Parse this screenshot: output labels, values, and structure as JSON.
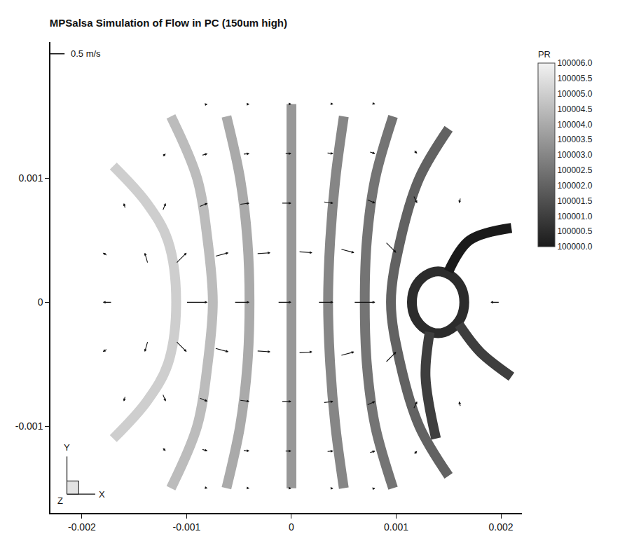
{
  "chart_data": {
    "type": "vector_field",
    "title": "MPSalsa Simulation of Flow in PC (150um high)",
    "xlim": [
      -0.0023,
      0.0022
    ],
    "xticks": [
      -0.002,
      -0.001,
      0,
      0.001,
      0.002
    ],
    "ylim": [
      -0.0017,
      0.0021
    ],
    "yticks": [
      -0.001,
      0,
      0.001
    ],
    "grid": false,
    "axes_triad": [
      "X",
      "Y",
      "Z"
    ],
    "reference_vector": {
      "value": 0.5,
      "label": "0.5 m/s"
    },
    "colorbar": {
      "title": "PR",
      "range": [
        100000,
        100006
      ],
      "ticks": [
        {
          "value": 100006,
          "label": "100006.0"
        },
        100005.5,
        {
          "value": 100005,
          "label": "100005.0"
        },
        100004.5,
        {
          "value": 100004,
          "label": "100004.0"
        },
        100003.5,
        {
          "value": 100003,
          "label": "100003.0"
        },
        100002.5,
        {
          "value": 100002,
          "label": "100002.0"
        },
        100001.5,
        {
          "value": 100001,
          "label": "100001.0"
        },
        100000.5,
        {
          "value": 100000,
          "label": "100000.0"
        }
      ]
    },
    "isobands": [
      {
        "pressure": 100005.0,
        "x": [
          -0.0017,
          -0.00138,
          -0.00118,
          -0.0011,
          -0.00118,
          -0.00138,
          -0.0017
        ],
        "y": [
          0.0011,
          0.0008,
          0.0005,
          0,
          -0.0005,
          -0.0008,
          -0.0011
        ]
      },
      {
        "pressure": 100004.5,
        "x": [
          -0.00115,
          -0.0009,
          -0.0008,
          -0.00075,
          -0.0008,
          -0.0009,
          -0.00115
        ],
        "y": [
          0.0015,
          0.001,
          0.0005,
          0,
          -0.0005,
          -0.001,
          -0.0015
        ]
      },
      {
        "pressure": 100004.0,
        "x": [
          -0.00062,
          -0.00049,
          -0.00042,
          -0.0004,
          -0.00042,
          -0.00049,
          -0.00062
        ],
        "y": [
          0.0015,
          0.001,
          0.0005,
          0,
          -0.0005,
          -0.001,
          -0.0015
        ]
      },
      {
        "pressure": 100003.5,
        "x": [
          0,
          0,
          0,
          0,
          0,
          0,
          0
        ],
        "y": [
          0.0016,
          0.001,
          0.0005,
          0,
          -0.0005,
          -0.001,
          -0.0015
        ]
      },
      {
        "pressure": 100003.0,
        "x": [
          0.0005,
          0.00042,
          0.00037,
          0.00035,
          0.00037,
          0.00042,
          0.0005
        ],
        "y": [
          0.0015,
          0.001,
          0.0005,
          0,
          -0.0005,
          -0.001,
          -0.0015
        ]
      },
      {
        "pressure": 100002.5,
        "x": [
          0.00097,
          0.0008,
          0.00072,
          0.0007,
          0.00072,
          0.0008,
          0.00097
        ],
        "y": [
          0.0015,
          0.001,
          0.0005,
          0,
          -0.0005,
          -0.001,
          -0.0015
        ]
      },
      {
        "pressure": 100002.0,
        "x": [
          0.0015,
          0.00122,
          0.00104,
          0.00095,
          0.00104,
          0.00122,
          0.0015
        ],
        "y": [
          0.0014,
          0.001,
          0.0005,
          0,
          -0.0005,
          -0.001,
          -0.0014
        ]
      },
      {
        "pressure": 100000.5,
        "x": [
          0.00165,
          0.001617,
          0.00152,
          0.0014,
          0.00128,
          0.001183,
          0.00115,
          0.001183,
          0.00128,
          0.0014,
          0.00152,
          0.001617,
          0.00165
        ],
        "y": [
          0,
          0.000125,
          0.000217,
          0.00025,
          0.000217,
          0.000125,
          0,
          -0.000125,
          -0.000217,
          -0.00025,
          -0.000217,
          -0.000125,
          0
        ]
      },
      {
        "pressure": 100000.0,
        "x": [
          0.0015,
          0.0017,
          0.0021
        ],
        "y": [
          0.00025,
          0.0005,
          0.0006
        ]
      },
      {
        "pressure": 100001.0,
        "x": [
          0.00132,
          0.00128,
          0.00138
        ],
        "y": [
          -0.00024,
          -0.0006,
          -0.0011
        ]
      },
      {
        "pressure": 100001.0,
        "x": [
          0.0016,
          0.0018,
          0.0021
        ],
        "y": [
          -0.00018,
          -0.0004,
          -0.0006
        ]
      }
    ],
    "vectors": [
      {
        "x": -0.0008,
        "y": 0.0016,
        "u": 0.1,
        "v": 0.02
      },
      {
        "x": -0.0004,
        "y": 0.0016,
        "u": 0.12,
        "v": 0.01
      },
      {
        "x": 0,
        "y": 0.0016,
        "u": 0.12,
        "v": 0
      },
      {
        "x": 0.0004,
        "y": 0.0016,
        "u": 0.12,
        "v": -0.01
      },
      {
        "x": 0.0008,
        "y": 0.0016,
        "u": 0.1,
        "v": -0.02
      },
      {
        "x": -0.0012,
        "y": 0.0012,
        "u": 0.12,
        "v": 0.12
      },
      {
        "x": -0.0008,
        "y": 0.0012,
        "u": 0.2,
        "v": 0.06
      },
      {
        "x": -0.0004,
        "y": 0.0012,
        "u": 0.22,
        "v": 0.02
      },
      {
        "x": 0,
        "y": 0.0012,
        "u": 0.22,
        "v": 0
      },
      {
        "x": 0.0004,
        "y": 0.0012,
        "u": 0.22,
        "v": -0.02
      },
      {
        "x": 0.0008,
        "y": 0.0012,
        "u": 0.2,
        "v": -0.06
      },
      {
        "x": 0.0012,
        "y": 0.0012,
        "u": 0.12,
        "v": -0.12
      },
      {
        "x": -0.0016,
        "y": 0.0008,
        "u": -0.05,
        "v": 0.18
      },
      {
        "x": -0.0012,
        "y": 0.0008,
        "u": 0.1,
        "v": 0.25
      },
      {
        "x": -0.0008,
        "y": 0.0008,
        "u": 0.28,
        "v": 0.12
      },
      {
        "x": -0.0004,
        "y": 0.0008,
        "u": 0.33,
        "v": 0.04
      },
      {
        "x": 0,
        "y": 0.0008,
        "u": 0.33,
        "v": 0
      },
      {
        "x": 0.0004,
        "y": 0.0008,
        "u": 0.33,
        "v": -0.04
      },
      {
        "x": 0.0008,
        "y": 0.0008,
        "u": 0.28,
        "v": -0.12
      },
      {
        "x": 0.0012,
        "y": 0.0008,
        "u": 0.12,
        "v": -0.25
      },
      {
        "x": 0.0016,
        "y": 0.0008,
        "u": -0.05,
        "v": -0.18
      },
      {
        "x": -0.0018,
        "y": 0.0004,
        "u": -0.15,
        "v": 0.1
      },
      {
        "x": -0.0014,
        "y": 0.0004,
        "u": -0.1,
        "v": 0.35
      },
      {
        "x": -0.001,
        "y": 0.0004,
        "u": 0.35,
        "v": 0.35
      },
      {
        "x": -0.0006,
        "y": 0.0004,
        "u": 0.45,
        "v": 0.12
      },
      {
        "x": -0.0002,
        "y": 0.0004,
        "u": 0.45,
        "v": 0.03
      },
      {
        "x": 0.0002,
        "y": 0.0004,
        "u": 0.45,
        "v": -0.03
      },
      {
        "x": 0.0006,
        "y": 0.0004,
        "u": 0.45,
        "v": -0.12
      },
      {
        "x": 0.001,
        "y": 0.0004,
        "u": 0.35,
        "v": -0.35
      },
      {
        "x": -0.0018,
        "y": 0,
        "u": -0.3,
        "v": 0
      },
      {
        "x": -0.0008,
        "y": 0,
        "u": 0.7,
        "v": 0
      },
      {
        "x": -0.0004,
        "y": 0,
        "u": 0.5,
        "v": 0
      },
      {
        "x": 0,
        "y": 0,
        "u": 0.45,
        "v": 0
      },
      {
        "x": 0.0004,
        "y": 0,
        "u": 0.5,
        "v": 0
      },
      {
        "x": 0.0008,
        "y": 0,
        "u": 0.7,
        "v": 0
      },
      {
        "x": 0.0019,
        "y": 0,
        "u": -0.3,
        "v": 0
      },
      {
        "x": -0.0018,
        "y": -0.0004,
        "u": -0.15,
        "v": -0.1
      },
      {
        "x": -0.0014,
        "y": -0.0004,
        "u": -0.1,
        "v": -0.35
      },
      {
        "x": -0.001,
        "y": -0.0004,
        "u": 0.35,
        "v": -0.35
      },
      {
        "x": -0.0006,
        "y": -0.0004,
        "u": 0.45,
        "v": -0.12
      },
      {
        "x": -0.0002,
        "y": -0.0004,
        "u": 0.45,
        "v": -0.03
      },
      {
        "x": 0.0002,
        "y": -0.0004,
        "u": 0.45,
        "v": 0.03
      },
      {
        "x": 0.0006,
        "y": -0.0004,
        "u": 0.45,
        "v": 0.12
      },
      {
        "x": 0.001,
        "y": -0.0004,
        "u": 0.35,
        "v": 0.35
      },
      {
        "x": -0.0016,
        "y": -0.0008,
        "u": -0.05,
        "v": -0.18
      },
      {
        "x": -0.0012,
        "y": -0.0008,
        "u": 0.1,
        "v": -0.25
      },
      {
        "x": -0.0008,
        "y": -0.0008,
        "u": 0.28,
        "v": -0.12
      },
      {
        "x": -0.0004,
        "y": -0.0008,
        "u": 0.33,
        "v": -0.04
      },
      {
        "x": 0,
        "y": -0.0008,
        "u": 0.33,
        "v": 0
      },
      {
        "x": 0.0004,
        "y": -0.0008,
        "u": 0.33,
        "v": 0.04
      },
      {
        "x": 0.0008,
        "y": -0.0008,
        "u": 0.28,
        "v": 0.12
      },
      {
        "x": 0.0012,
        "y": -0.0008,
        "u": 0.12,
        "v": 0.25
      },
      {
        "x": 0.0016,
        "y": -0.0008,
        "u": -0.05,
        "v": 0.18
      },
      {
        "x": -0.0012,
        "y": -0.0012,
        "u": 0.12,
        "v": -0.12
      },
      {
        "x": -0.0008,
        "y": -0.0012,
        "u": 0.2,
        "v": -0.06
      },
      {
        "x": -0.0004,
        "y": -0.0012,
        "u": 0.22,
        "v": -0.02
      },
      {
        "x": 0,
        "y": -0.0012,
        "u": 0.22,
        "v": 0
      },
      {
        "x": 0.0004,
        "y": -0.0012,
        "u": 0.22,
        "v": 0.02
      },
      {
        "x": 0.0008,
        "y": -0.0012,
        "u": 0.2,
        "v": 0.06
      },
      {
        "x": 0.0012,
        "y": -0.0012,
        "u": 0.12,
        "v": 0.12
      },
      {
        "x": -0.0008,
        "y": -0.0015,
        "u": 0.1,
        "v": -0.02
      },
      {
        "x": -0.0004,
        "y": -0.0015,
        "u": 0.12,
        "v": -0.01
      },
      {
        "x": 0,
        "y": -0.0015,
        "u": 0.12,
        "v": 0
      },
      {
        "x": 0.0004,
        "y": -0.0015,
        "u": 0.12,
        "v": 0.01
      },
      {
        "x": 0.0008,
        "y": -0.0015,
        "u": 0.1,
        "v": 0.02
      }
    ]
  }
}
